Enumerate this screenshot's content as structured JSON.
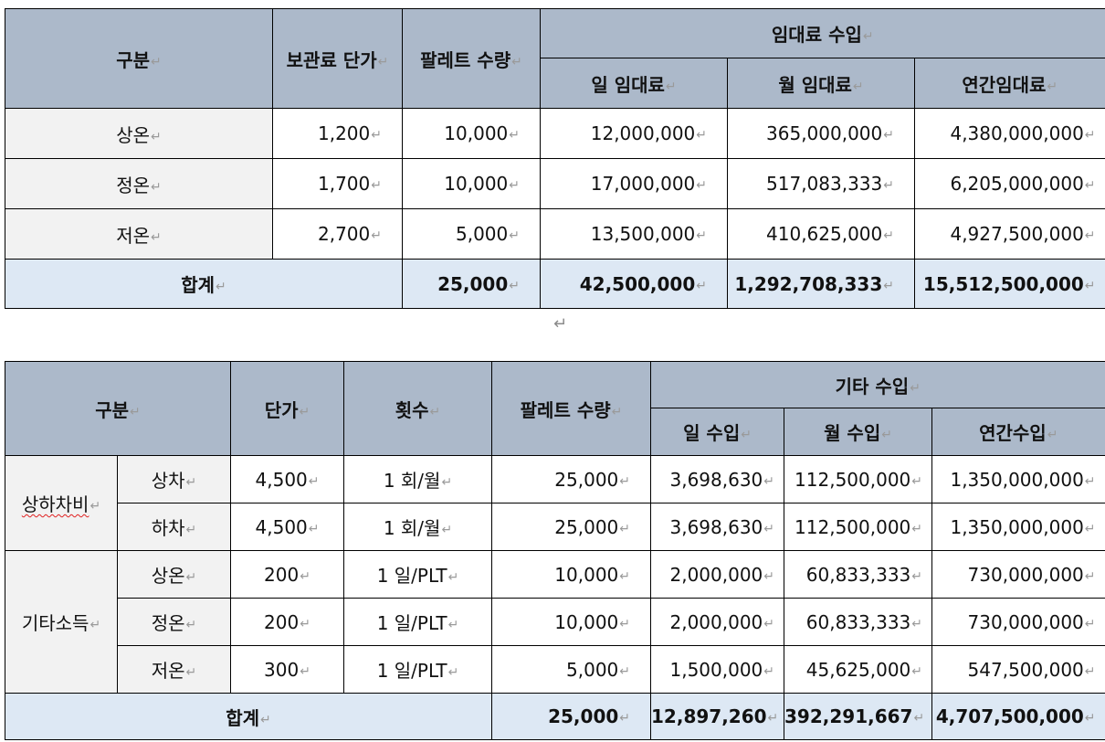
{
  "mark": "↵",
  "rental_table": {
    "headers": {
      "category": "구분",
      "unit_price": "보관료 단가",
      "pallet_qty": "팔레트 수량",
      "rental_income": "임대료 수입",
      "daily": "일 임대료",
      "monthly": "월 임대료",
      "annual": "연간임대료"
    },
    "rows": [
      {
        "label": "상온",
        "price": "1,200",
        "qty": "10,000",
        "daily": "12,000,000",
        "monthly": "365,000,000",
        "annual": "4,380,000,000"
      },
      {
        "label": "정온",
        "price": "1,700",
        "qty": "10,000",
        "daily": "17,000,000",
        "monthly": "517,083,333",
        "annual": "6,205,000,000"
      },
      {
        "label": "저온",
        "price": "2,700",
        "qty": "5,000",
        "daily": "13,500,000",
        "monthly": "410,625,000",
        "annual": "4,927,500,000"
      }
    ],
    "total": {
      "label": "합계",
      "qty": "25,000",
      "daily": "42,500,000",
      "monthly": "1,292,708,333",
      "annual": "15,512,500,000"
    }
  },
  "other_table": {
    "headers": {
      "category": "구분",
      "unit_price": "단가",
      "count": "횟수",
      "pallet_qty": "팔레트 수량",
      "other_income": "기타 수입",
      "daily": "일 수입",
      "monthly": "월 수입",
      "annual": "연간수입"
    },
    "groups": [
      {
        "label": "상하차비",
        "rows": [
          {
            "sub": "상차",
            "price": "4,500",
            "count": "1 회/월",
            "qty": "25,000",
            "daily": "3,698,630",
            "monthly": "112,500,000",
            "annual": "1,350,000,000"
          },
          {
            "sub": "하차",
            "price": "4,500",
            "count": "1 회/월",
            "qty": "25,000",
            "daily": "3,698,630",
            "monthly": "112,500,000",
            "annual": "1,350,000,000"
          }
        ]
      },
      {
        "label": "기타소득",
        "rows": [
          {
            "sub": "상온",
            "price": "200",
            "count": "1 일/PLT",
            "qty": "10,000",
            "daily": "2,000,000",
            "monthly": "60,833,333",
            "annual": "730,000,000"
          },
          {
            "sub": "정온",
            "price": "200",
            "count": "1 일/PLT",
            "qty": "10,000",
            "daily": "2,000,000",
            "monthly": "60,833,333",
            "annual": "730,000,000"
          },
          {
            "sub": "저온",
            "price": "300",
            "count": "1 일/PLT",
            "qty": "5,000",
            "daily": "1,500,000",
            "monthly": "45,625,000",
            "annual": "547,500,000"
          }
        ]
      }
    ],
    "total": {
      "label": "합계",
      "qty": "25,000",
      "daily": "12,897,260",
      "monthly": "392,291,667",
      "annual": "4,707,500,000"
    }
  }
}
